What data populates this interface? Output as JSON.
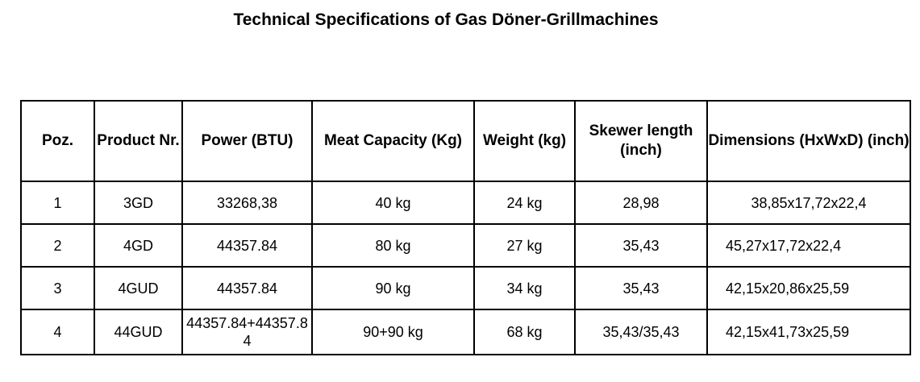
{
  "header": {
    "title": "Technical Specifications of Gas Döner-Grillmachines"
  },
  "table": {
    "columns": [
      "Poz.",
      "Product Nr.",
      "Power (BTU)",
      "Meat Capacity (Kg)",
      "Weight (kg)",
      "Skewer length (inch)",
      "Dimensions (HxWxD) (inch)"
    ],
    "rows": [
      [
        "1",
        "3GD",
        "33268,38",
        "40 kg",
        "24 kg",
        "28,98",
        "38,85x17,72x22,4"
      ],
      [
        "2",
        "4GD",
        "44357.84",
        "80 kg",
        "27 kg",
        "35,43",
        "45,27x17,72x22,4"
      ],
      [
        "3",
        "4GUD",
        "44357.84",
        "90 kg",
        "34 kg",
        "35,43",
        "42,15x20,86x25,59"
      ],
      [
        "4",
        "44GUD",
        "44357.84+44357.84",
        "90+90 kg",
        "68 kg",
        "35,43/35,43",
        "42,15x41,73x25,59"
      ]
    ]
  }
}
